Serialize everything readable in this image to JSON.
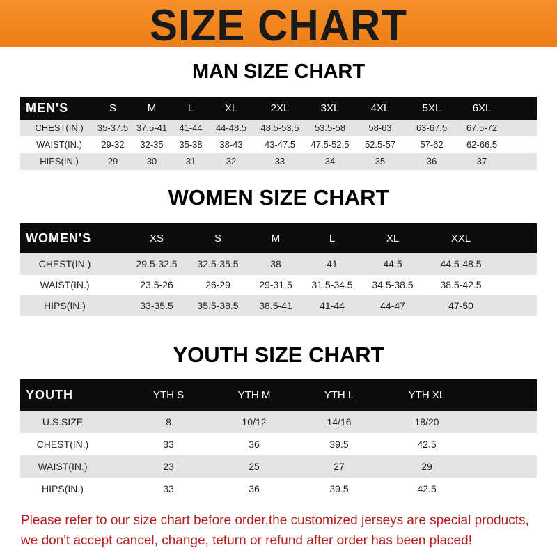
{
  "title": "SIZE CHART",
  "colors": {
    "banner": "#f28a1f",
    "header_row": "#0d0b0b",
    "note_text": "#b31e1e"
  },
  "tables": [
    {
      "heading": "MAN SIZE CHART",
      "columns": [
        "MEN'S",
        "S",
        "M",
        "L",
        "XL",
        "2XL",
        "3XL",
        "4XL",
        "5XL",
        "6XL"
      ],
      "rows": [
        [
          "CHEST(IN.)",
          "35-37.5",
          "37.5-41",
          "41-44",
          "44-48.5",
          "48.5-53.5",
          "53.5-58",
          "58-63",
          "63-67.5",
          "67.5-72"
        ],
        [
          "WAIST(IN.)",
          "29-32",
          "32-35",
          "35-38",
          "38-43",
          "43-47.5",
          "47.5-52.5",
          "52.5-57",
          "57-62",
          "62-66.5"
        ],
        [
          "HIPS(IN.)",
          "29",
          "30",
          "31",
          "32",
          "33",
          "34",
          "35",
          "36",
          "37"
        ]
      ]
    },
    {
      "heading": "WOMEN SIZE CHART",
      "columns": [
        "WOMEN'S",
        "XS",
        "S",
        "M",
        "L",
        "XL",
        "XXL"
      ],
      "rows": [
        [
          "CHEST(IN.)",
          "29.5-32.5",
          "32.5-35.5",
          "38",
          "41",
          "44.5",
          "44.5-48.5"
        ],
        [
          "WAIST(IN.)",
          "23.5-26",
          "26-29",
          "29-31.5",
          "31.5-34.5",
          "34.5-38.5",
          "38.5-42.5"
        ],
        [
          "HIPS(IN.)",
          "33-35.5",
          "35.5-38.5",
          "38.5-41",
          "41-44",
          "44-47",
          "47-50"
        ]
      ]
    },
    {
      "heading": "YOUTH SIZE CHART",
      "columns": [
        "YOUTH",
        "YTH S",
        "YTH M",
        "YTH L",
        "YTH XL"
      ],
      "rows": [
        [
          "U.S.SIZE",
          "8",
          "10/12",
          "14/16",
          "18/20"
        ],
        [
          "CHEST(IN.)",
          "33",
          "36",
          "39.5",
          "42.5"
        ],
        [
          "WAIST(IN.)",
          "23",
          "25",
          "27",
          "29"
        ],
        [
          "HIPS(IN.)",
          "33",
          "36",
          "39.5",
          "42.5"
        ]
      ]
    }
  ],
  "note": {
    "line1": "Please refer to our size chart before order,the customized jerseys are special products,",
    "line2": "we don't accept cancel, change, teturn or refund after order has been placed!"
  }
}
